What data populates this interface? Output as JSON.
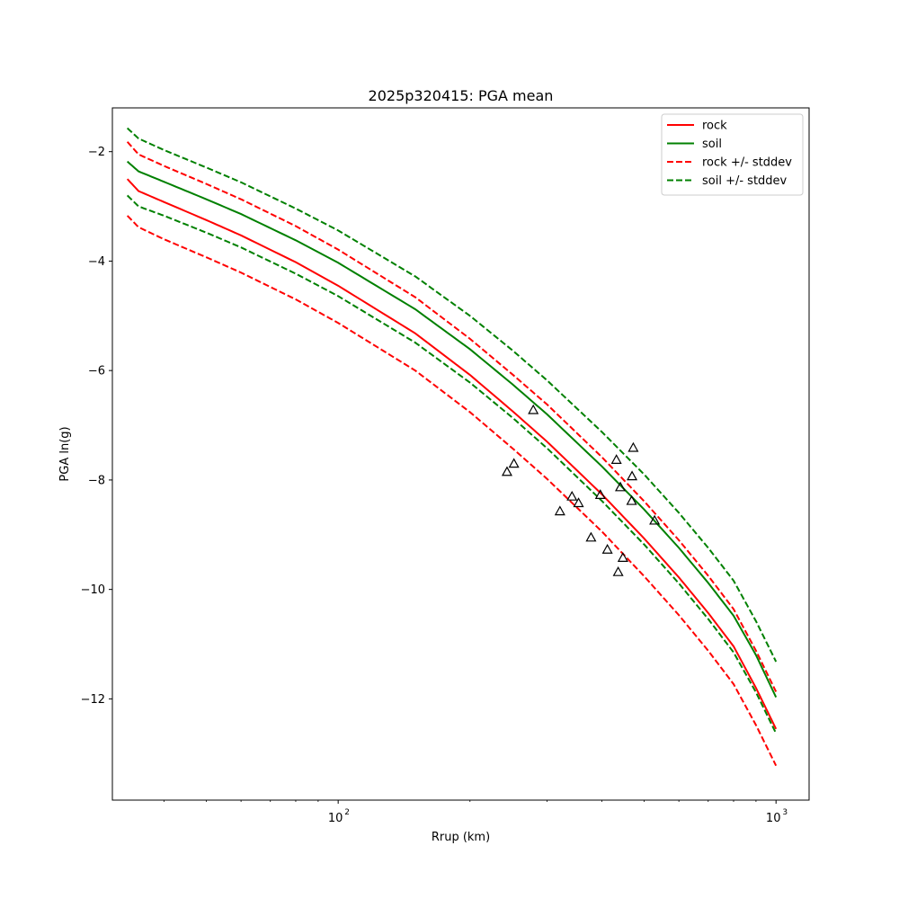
{
  "chart_data": {
    "type": "line",
    "title": "2025p320415: PGA mean",
    "xlabel": "Rrup (km)",
    "ylabel": "PGA ln(g)",
    "xscale": "log",
    "xlim": [
      30.5,
      1190
    ],
    "ylim": [
      -13.85,
      -1.2
    ],
    "xticks": [
      {
        "value": 100,
        "base": "10",
        "exp": "2"
      },
      {
        "value": 1000,
        "base": "10",
        "exp": "3"
      }
    ],
    "yticks": [
      {
        "value": -2,
        "label": "−2"
      },
      {
        "value": -4,
        "label": "−4"
      },
      {
        "value": -6,
        "label": "−6"
      },
      {
        "value": -8,
        "label": "−8"
      },
      {
        "value": -10,
        "label": "−10"
      },
      {
        "value": -12,
        "label": "−12"
      }
    ],
    "grid": false,
    "legend_position": "upper right",
    "x": [
      33,
      35,
      40,
      50,
      60,
      80,
      100,
      150,
      200,
      250,
      300,
      400,
      500,
      600,
      700,
      800,
      900,
      1000
    ],
    "series": [
      {
        "name": "rock",
        "style": "solid",
        "color": "#ff0000",
        "legend": true,
        "values": [
          -2.5,
          -2.72,
          -2.92,
          -3.25,
          -3.53,
          -4.02,
          -4.45,
          -5.32,
          -6.08,
          -6.74,
          -7.3,
          -8.26,
          -9.07,
          -9.78,
          -10.43,
          -11.04,
          -11.8,
          -12.55
        ]
      },
      {
        "name": "soil",
        "style": "solid",
        "color": "#008000",
        "legend": true,
        "values": [
          -2.18,
          -2.36,
          -2.55,
          -2.87,
          -3.14,
          -3.62,
          -4.03,
          -4.88,
          -5.61,
          -6.25,
          -6.8,
          -7.75,
          -8.54,
          -9.24,
          -9.88,
          -10.48,
          -11.2,
          -11.97
        ]
      },
      {
        "name": "rock +/- stddev",
        "style": "dashed",
        "color": "#ff0000",
        "legend": true,
        "values": [
          -1.82,
          -2.05,
          -2.26,
          -2.59,
          -2.87,
          -3.36,
          -3.79,
          -4.66,
          -5.42,
          -6.07,
          -6.62,
          -7.58,
          -8.39,
          -9.1,
          -9.75,
          -10.36,
          -11.12,
          -11.87
        ]
      },
      {
        "name": "rock +/- stddev",
        "style": "dashed",
        "color": "#ff0000",
        "legend": false,
        "values": [
          -3.17,
          -3.38,
          -3.6,
          -3.93,
          -4.21,
          -4.7,
          -5.13,
          -6.0,
          -6.76,
          -7.42,
          -7.98,
          -8.94,
          -9.76,
          -10.47,
          -11.12,
          -11.73,
          -12.48,
          -13.22
        ]
      },
      {
        "name": "soil +/- stddev",
        "style": "dashed",
        "color": "#008000",
        "legend": true,
        "values": [
          -1.57,
          -1.76,
          -1.97,
          -2.29,
          -2.56,
          -3.04,
          -3.44,
          -4.28,
          -5.0,
          -5.63,
          -6.18,
          -7.12,
          -7.9,
          -8.6,
          -9.24,
          -9.84,
          -10.58,
          -11.32
        ]
      },
      {
        "name": "soil +/- stddev",
        "style": "dashed",
        "color": "#008000",
        "legend": false,
        "values": [
          -2.8,
          -3.0,
          -3.17,
          -3.48,
          -3.75,
          -4.23,
          -4.64,
          -5.49,
          -6.22,
          -6.86,
          -7.42,
          -8.38,
          -9.18,
          -9.89,
          -10.54,
          -11.15,
          -11.88,
          -12.63
        ]
      }
    ],
    "observations": {
      "marker": "triangle",
      "color": "#000000",
      "points": [
        {
          "x": 243,
          "y": -7.85
        },
        {
          "x": 252,
          "y": -7.7
        },
        {
          "x": 279,
          "y": -6.72
        },
        {
          "x": 321,
          "y": -8.57
        },
        {
          "x": 342,
          "y": -8.3
        },
        {
          "x": 354,
          "y": -8.42
        },
        {
          "x": 378,
          "y": -9.05
        },
        {
          "x": 397,
          "y": -8.27
        },
        {
          "x": 412,
          "y": -9.27
        },
        {
          "x": 432,
          "y": -7.63
        },
        {
          "x": 436,
          "y": -9.68
        },
        {
          "x": 441,
          "y": -8.13
        },
        {
          "x": 447,
          "y": -9.42
        },
        {
          "x": 468,
          "y": -8.38
        },
        {
          "x": 469,
          "y": -7.93
        },
        {
          "x": 472,
          "y": -7.41
        },
        {
          "x": 528,
          "y": -8.74
        }
      ]
    }
  }
}
